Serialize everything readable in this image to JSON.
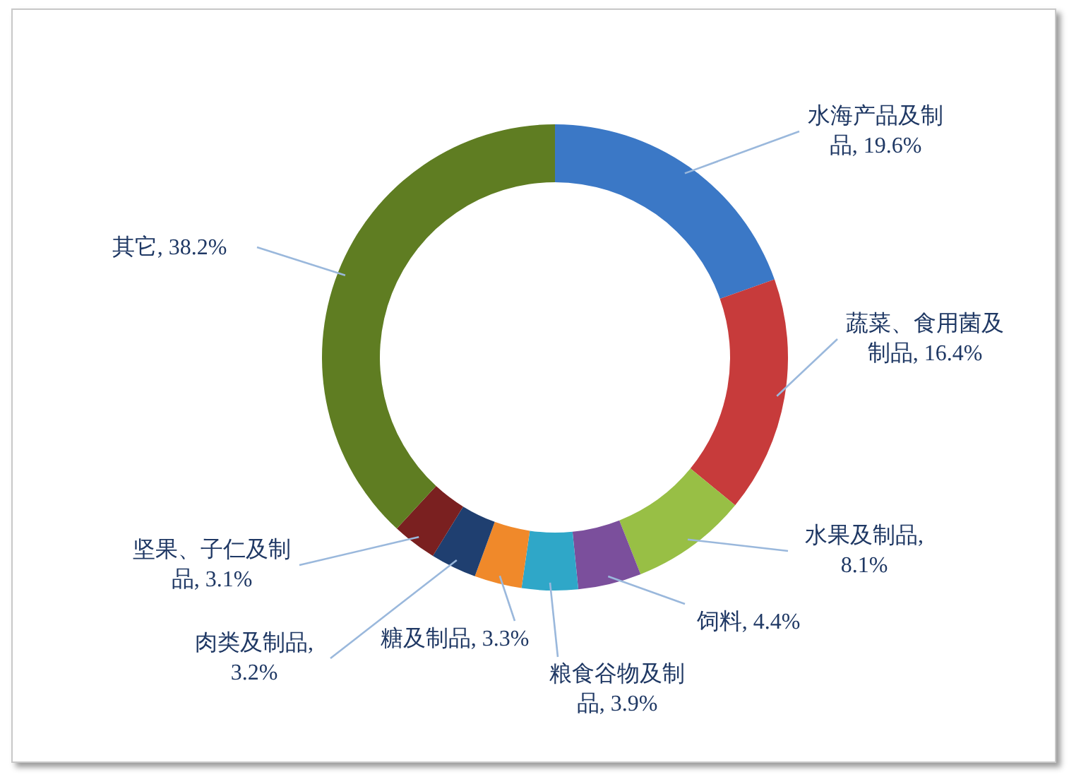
{
  "chart_data": {
    "type": "donut",
    "data_labels": true,
    "categories": [
      "水海产品及制品",
      "蔬菜、食用菌及制品",
      "水果及制品",
      "饲料",
      "粮食谷物及制品",
      "糖及制品",
      "肉类及制品",
      "坚果、子仁及制品",
      "其它"
    ],
    "values": [
      19.6,
      16.4,
      8.1,
      4.4,
      3.9,
      3.3,
      3.2,
      3.1,
      38.2
    ],
    "value_labels": [
      ", 19.6%",
      ", 16.4%",
      ", 8.1%",
      ", 4.4%",
      ", 3.9%",
      ", 3.3%",
      ", 3.2%",
      ", 3.1%",
      ", 38.2%"
    ],
    "colors": [
      "#3b78c6",
      "#c73b3b",
      "#98bf45",
      "#7b4f9c",
      "#2fa7c8",
      "#f0892a",
      "#1f3f70",
      "#7a2020",
      "#5f7d22"
    ]
  }
}
